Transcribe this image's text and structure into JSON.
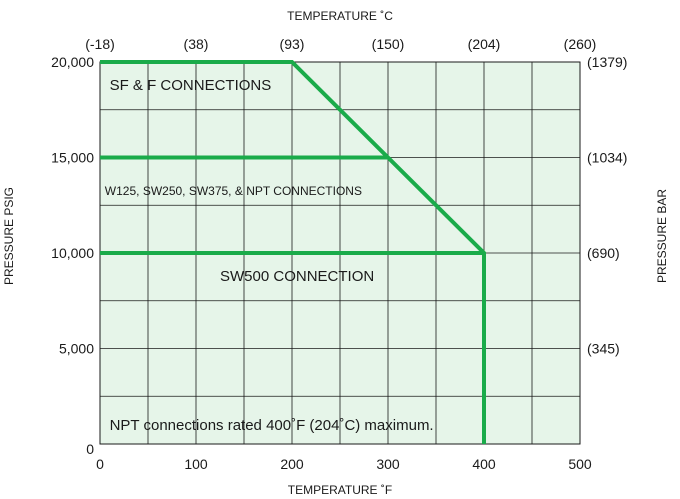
{
  "chart_data": {
    "type": "line",
    "x_axis": {
      "label": "TEMPERATURE ˚F",
      "range": [
        0,
        500
      ],
      "ticks": [
        0,
        100,
        200,
        300,
        400,
        500
      ],
      "tick_labels": [
        "0",
        "100",
        "200",
        "300",
        "400",
        "500"
      ]
    },
    "x2_axis": {
      "label": "TEMPERATURE ˚C",
      "tick_labels": [
        "(-18)",
        "(38)",
        "(93)",
        "(150)",
        "(204)",
        "(260)"
      ],
      "positions_f": [
        0,
        100,
        200,
        300,
        400,
        500
      ]
    },
    "y_axis": {
      "label": "PRESSURE PSIG",
      "range": [
        0,
        20000
      ],
      "ticks": [
        0,
        5000,
        10000,
        15000,
        20000
      ],
      "tick_labels": [
        "0",
        "5,000",
        "10,000",
        "15,000",
        "20,000"
      ]
    },
    "y2_axis": {
      "label": "PRESSURE BAR",
      "tick_labels": [
        "(1379)",
        "(1034)",
        "(690)",
        "(345)"
      ],
      "positions_psig": [
        20000,
        15000,
        10000,
        5000
      ]
    },
    "grid": true,
    "colors": {
      "line": "#1aab4a",
      "plot_bg": "#e6f5e9",
      "grid": "#1a1a1a"
    },
    "series": [
      {
        "x": [
          0,
          200,
          400,
          400
        ],
        "y": [
          20000,
          20000,
          10000,
          0
        ]
      },
      {
        "x": [
          0,
          300
        ],
        "y": [
          15000,
          15000
        ]
      },
      {
        "x": [
          0,
          400
        ],
        "y": [
          10000,
          10000
        ]
      }
    ],
    "annotations": [
      {
        "text": "SF & F CONNECTIONS",
        "x": 10,
        "y": 18800,
        "size": "normal"
      },
      {
        "text": "W125, SW250, SW375, & NPT CONNECTIONS",
        "x": 5,
        "y": 13300,
        "size": "small"
      },
      {
        "text": "SW500 CONNECTION",
        "x": 125,
        "y": 8800,
        "size": "normal"
      },
      {
        "text": "NPT connections rated 400˚F (204˚C) maximum.",
        "x": 10,
        "y": 1000,
        "size": "normal"
      }
    ]
  }
}
